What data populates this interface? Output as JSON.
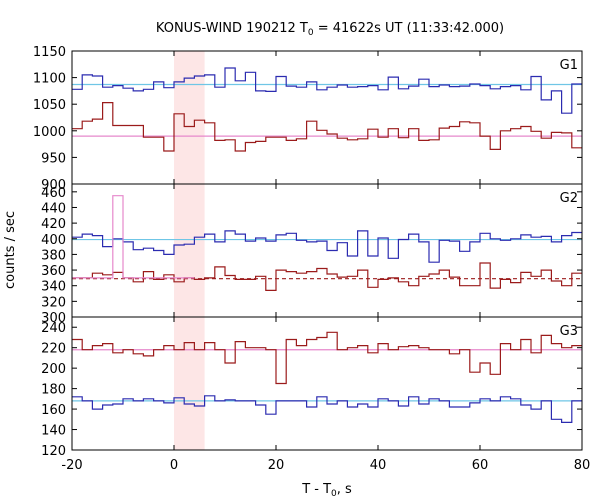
{
  "title_prefix": "KONUS-WIND 190212 T",
  "title_sub": "0",
  "title_suffix": " = 41622s UT (11:33:42.000)",
  "xlabel_prefix": "T - T",
  "xlabel_sub": "0",
  "xlabel_suffix": ", s",
  "ylabel": "counts / sec",
  "colors": {
    "blue": "#2b2bb0",
    "darkred": "#9b1b1b",
    "cyan": "#6fc6e6",
    "pink": "#e688cc",
    "shade": "#fde6e6"
  },
  "chart_data": {
    "type": "line",
    "xlim": [
      -20,
      80
    ],
    "x_ticks": [
      -20,
      0,
      20,
      40,
      60,
      80
    ],
    "x_tick_labels": [
      "-20",
      "0",
      "20",
      "40",
      "60",
      "80"
    ],
    "bin_edges": [
      -20,
      -18,
      -16,
      -14,
      -12,
      -10,
      -8,
      -6,
      -4,
      -2,
      0,
      2,
      4,
      6,
      8,
      10,
      12,
      14,
      16,
      18,
      20,
      22,
      24,
      26,
      28,
      30,
      32,
      34,
      36,
      38,
      40,
      42,
      44,
      46,
      48,
      50,
      52,
      54,
      56,
      58,
      60,
      62,
      64,
      66,
      68,
      70,
      72,
      74,
      76,
      78,
      80
    ],
    "highlight_interval": [
      0,
      6
    ],
    "panels": [
      {
        "label": "G1",
        "ylim": [
          900,
          1150
        ],
        "y_ticks": [
          900,
          950,
          1000,
          1050,
          1100,
          1150
        ],
        "y_tick_labels": [
          "900",
          "950",
          "1000",
          "1050",
          "1100",
          "1150"
        ],
        "background_levels": [
          {
            "value": 1087,
            "color": "cyan",
            "dashed": false
          },
          {
            "value": 990,
            "color": "pink",
            "dashed": false
          }
        ],
        "series": [
          {
            "color": "blue",
            "values": [
              1078,
              1105,
              1103,
              1082,
              1085,
              1080,
              1075,
              1078,
              1092,
              1081,
              1092,
              1099,
              1103,
              1105,
              1082,
              1118,
              1094,
              1110,
              1075,
              1074,
              1102,
              1084,
              1082,
              1092,
              1077,
              1082,
              1086,
              1082,
              1083,
              1085,
              1077,
              1101,
              1079,
              1084,
              1097,
              1083,
              1086,
              1083,
              1084,
              1088,
              1085,
              1079,
              1083,
              1085,
              1077,
              1102,
              1058,
              1075,
              1033,
              1088
            ]
          },
          {
            "color": "darkred",
            "values": [
              1004,
              1018,
              1022,
              1053,
              1010,
              1010,
              1010,
              988,
              988,
              962,
              1032,
              1008,
              1020,
              1015,
              982,
              983,
              962,
              978,
              980,
              988,
              988,
              982,
              985,
              1018,
              1001,
              994,
              986,
              983,
              985,
              1003,
              988,
              1004,
              987,
              1004,
              982,
              983,
              1005,
              1008,
              1017,
              1015,
              990,
              965,
              1000,
              1004,
              1008,
              999,
              986,
              997,
              996,
              968
            ]
          }
        ]
      },
      {
        "label": "G2",
        "ylim": [
          300,
          470
        ],
        "y_ticks": [
          300,
          320,
          340,
          360,
          380,
          400,
          420,
          440,
          460
        ],
        "y_tick_labels": [
          "300",
          "320",
          "340",
          "360",
          "380",
          "400",
          "420",
          "440",
          "460"
        ],
        "background_levels": [
          {
            "value": 399,
            "color": "cyan",
            "dashed": false
          },
          {
            "value": 349,
            "color": "darkred",
            "dashed": true
          }
        ],
        "series": [
          {
            "color": "blue",
            "values": [
              402,
              406,
              404,
              390,
              400,
              396,
              386,
              388,
              385,
              380,
              392,
              393,
              402,
              406,
              396,
              410,
              406,
              397,
              401,
              397,
              405,
              407,
              398,
              396,
              397,
              385,
              395,
              378,
              410,
              378,
              401,
              375,
              399,
              406,
              396,
              370,
              398,
              397,
              384,
              396,
              407,
              400,
              398,
              400,
              405,
              402,
              403,
              396,
              404,
              408
            ]
          },
          {
            "color": "darkred",
            "values": [
              350,
              350,
              356,
              354,
              357,
              350,
              345,
              358,
              348,
              354,
              345,
              350,
              348,
              350,
              364,
              353,
              348,
              348,
              352,
              334,
              360,
              358,
              356,
              358,
              362,
              355,
              351,
              352,
              360,
              338,
              348,
              350,
              345,
              340,
              352,
              355,
              360,
              351,
              340,
              340,
              369,
              337,
              348,
              344,
              357,
              352,
              360,
              346,
              340,
              356
            ]
          },
          {
            "color": "pink",
            "x_range": [
              -20,
              4
            ],
            "values": [
              350,
              350,
              350,
              350,
              455,
              350,
              350,
              350,
              350,
              350,
              350,
              350
            ]
          }
        ]
      },
      {
        "label": "G3",
        "ylim": [
          120,
          250
        ],
        "y_ticks": [
          120,
          140,
          160,
          180,
          200,
          220,
          240
        ],
        "y_tick_labels": [
          "120",
          "140",
          "160",
          "180",
          "200",
          "220",
          "240"
        ],
        "background_levels": [
          {
            "value": 218,
            "color": "pink",
            "dashed": false
          },
          {
            "value": 168,
            "color": "cyan",
            "dashed": false
          }
        ],
        "series": [
          {
            "color": "blue",
            "values": [
              172,
              168,
              160,
              164,
              165,
              170,
              168,
              170,
              168,
              166,
              171,
              165,
              163,
              173,
              168,
              169,
              168,
              168,
              164,
              155,
              168,
              168,
              168,
              162,
              172,
              165,
              168,
              162,
              165,
              162,
              170,
              168,
              163,
              172,
              165,
              170,
              168,
              162,
              162,
              166,
              170,
              168,
              172,
              170,
              164,
              160,
              168,
              150,
              147,
              168
            ]
          },
          {
            "color": "darkred",
            "values": [
              228,
              218,
              222,
              224,
              215,
              218,
              214,
              212,
              218,
              222,
              218,
              225,
              218,
              225,
              218,
              205,
              226,
              220,
              220,
              218,
              185,
              228,
              222,
              228,
              230,
              235,
              218,
              220,
              222,
              215,
              224,
              218,
              221,
              222,
              220,
              218,
              218,
              214,
              218,
              196,
              205,
              194,
              224,
              218,
              228,
              215,
              232,
              224,
              220,
              222
            ]
          }
        ]
      }
    ]
  }
}
